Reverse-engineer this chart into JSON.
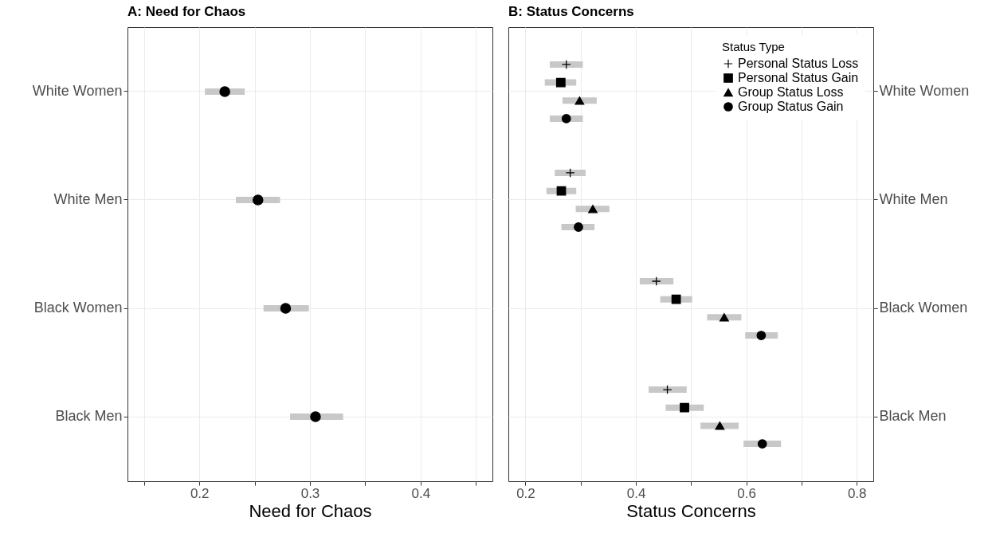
{
  "chart_data": [
    {
      "type": "scatter",
      "title": "A: Need for Chaos",
      "xlabel": "Need for Chaos",
      "orientation": "horizontal",
      "categories": [
        "White Women",
        "White Men",
        "Black Women",
        "Black Men"
      ],
      "xlim": [
        0.135,
        0.465
      ],
      "xticks": [
        {
          "value": 0.15,
          "label": null
        },
        0.2,
        {
          "value": 0.25,
          "label": null
        },
        0.3,
        {
          "value": 0.35,
          "label": null
        },
        0.4,
        {
          "value": 0.45,
          "label": null
        }
      ],
      "grid": true,
      "marker": "circle",
      "series": [
        {
          "color": "#000000",
          "values": [
            0.223,
            0.253,
            0.278,
            0.305
          ],
          "errors": [
            [
              0.205,
              0.241
            ],
            [
              0.233,
              0.273
            ],
            [
              0.258,
              0.299
            ],
            [
              0.282,
              0.33
            ]
          ]
        }
      ]
    },
    {
      "type": "scatter",
      "title": "B: Status Concerns",
      "xlabel": "Status Concerns",
      "orientation": "horizontal",
      "categories": [
        "White Women",
        "White Men",
        "Black Women",
        "Black Men"
      ],
      "xlim": [
        0.169,
        0.83
      ],
      "xticks": [
        0.2,
        {
          "value": 0.3,
          "label": null
        },
        0.4,
        {
          "value": 0.5,
          "label": null
        },
        0.6,
        {
          "value": 0.7,
          "label": null
        },
        0.8
      ],
      "grid": true,
      "legend": "top right",
      "legend_title": "Status Type",
      "series": [
        {
          "name": "Personal Status Loss",
          "color": "#000000",
          "marker": "cross",
          "values": [
            0.274,
            0.281,
            0.437,
            0.457
          ],
          "errors": [
            [
              0.244,
              0.304
            ],
            [
              0.253,
              0.309
            ],
            [
              0.407,
              0.468
            ],
            [
              0.423,
              0.492
            ]
          ]
        },
        {
          "name": "Personal Status Gain",
          "color": "#000000",
          "marker": "square",
          "values": [
            0.264,
            0.265,
            0.473,
            0.488
          ],
          "errors": [
            [
              0.235,
              0.292
            ],
            [
              0.238,
              0.292
            ],
            [
              0.444,
              0.502
            ],
            [
              0.454,
              0.523
            ]
          ]
        },
        {
          "name": "Group Status Loss",
          "color": "#000000",
          "marker": "triangle",
          "values": [
            0.298,
            0.322,
            0.56,
            0.552
          ],
          "errors": [
            [
              0.267,
              0.329
            ],
            [
              0.291,
              0.352
            ],
            [
              0.529,
              0.591
            ],
            [
              0.517,
              0.586
            ]
          ]
        },
        {
          "name": "Group Status Gain",
          "color": "#000000",
          "marker": "circle",
          "values": [
            0.274,
            0.296,
            0.627,
            0.629
          ],
          "errors": [
            [
              0.244,
              0.304
            ],
            [
              0.265,
              0.325
            ],
            [
              0.598,
              0.657
            ],
            [
              0.595,
              0.663
            ]
          ]
        }
      ]
    }
  ]
}
